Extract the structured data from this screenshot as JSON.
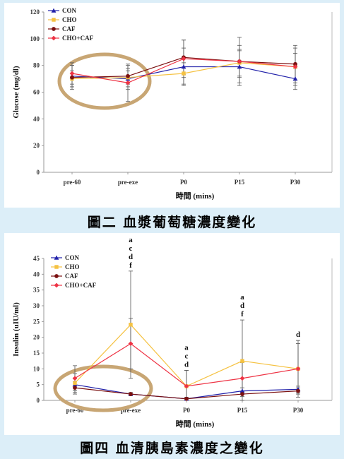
{
  "colors": {
    "CON": "#2222aa",
    "CHO": "#f5c242",
    "CAF": "#7a1010",
    "CHO+CAF": "#ee3344",
    "circle": "#c8a674",
    "error": "#555555"
  },
  "chart_data": [
    {
      "type": "line",
      "title": "",
      "xlabel": "時間 (mins)",
      "ylabel": "Glucose (mg/dl)",
      "ylim": [
        0,
        120
      ],
      "yticks": [
        0,
        20,
        40,
        60,
        80,
        100,
        120
      ],
      "categories": [
        "pre-60",
        "pre-exe",
        "P0",
        "P15",
        "P30"
      ],
      "legend": "top-left",
      "series": [
        {
          "name": "CON",
          "marker": "triangle",
          "values": [
            72,
            70,
            79,
            79,
            70
          ],
          "err": [
            8,
            8,
            14,
            12,
            8
          ]
        },
        {
          "name": "CHO",
          "marker": "square",
          "values": [
            70,
            71,
            74,
            82,
            79
          ],
          "err": [
            6,
            5,
            8,
            10,
            10
          ]
        },
        {
          "name": "CAF",
          "marker": "circle",
          "values": [
            71,
            72,
            86,
            83,
            81
          ],
          "err": [
            9,
            8,
            13,
            18,
            14
          ]
        },
        {
          "name": "CHO+CAF",
          "marker": "diamond",
          "values": [
            74,
            67,
            85,
            83,
            79
          ],
          "err": [
            8,
            14,
            14,
            12,
            14
          ]
        }
      ],
      "caption": "圖二  血漿葡萄糖濃度變化"
    },
    {
      "type": "line",
      "title": "",
      "xlabel": "時間 (mins)",
      "ylabel": "Insulin (uIU/ml)",
      "ylim": [
        0,
        45
      ],
      "yticks": [
        0,
        5,
        10,
        15,
        20,
        25,
        30,
        35,
        40,
        45
      ],
      "categories": [
        "pre-60",
        "pre-exe",
        "P0",
        "P15",
        "P30"
      ],
      "legend": "top-left",
      "series": [
        {
          "name": "CON",
          "marker": "triangle",
          "values": [
            5,
            2,
            0.5,
            3,
            3.5
          ],
          "err": [
            2,
            0.5,
            0.5,
            1,
            1
          ]
        },
        {
          "name": "CHO",
          "marker": "square",
          "values": [
            5.5,
            24,
            4.5,
            12.5,
            10
          ],
          "err": [
            3,
            17,
            5,
            13,
            8
          ]
        },
        {
          "name": "CAF",
          "marker": "circle",
          "values": [
            4,
            2,
            0.5,
            2,
            3
          ],
          "err": [
            2,
            0.5,
            0.5,
            0.8,
            1
          ]
        },
        {
          "name": "CHO+CAF",
          "marker": "diamond",
          "values": [
            7,
            18,
            4.5,
            7,
            10
          ],
          "err": [
            4,
            8,
            5,
            5,
            9
          ]
        }
      ],
      "annotations": [
        {
          "category": "pre-exe",
          "lines": [
            "a",
            "c",
            "d",
            "f"
          ]
        },
        {
          "category": "P0",
          "lines": [
            "a",
            "c",
            "d"
          ]
        },
        {
          "category": "P15",
          "lines": [
            "a",
            "d",
            "f"
          ]
        },
        {
          "category": "P30",
          "lines": [
            "d"
          ]
        }
      ],
      "caption": "圖四  血清胰島素濃度之變化"
    }
  ]
}
